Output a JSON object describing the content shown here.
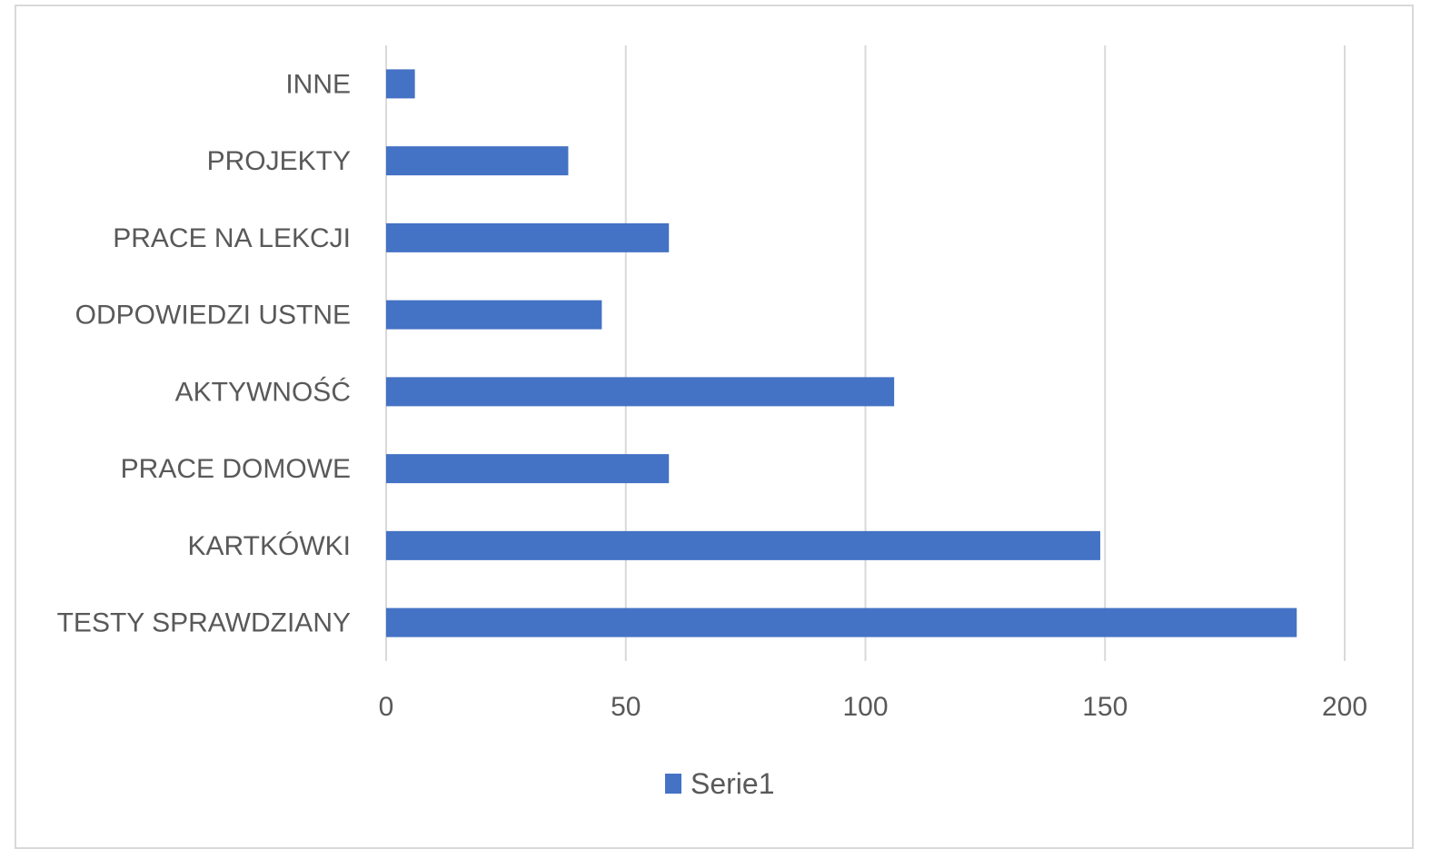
{
  "chart_data": {
    "type": "bar",
    "orientation": "horizontal",
    "categories": [
      "TESTY SPRAWDZIANY",
      "KARTKÓWKI",
      "PRACE DOMOWE",
      "AKTYWNOŚĆ",
      "ODPOWIEDZI USTNE",
      "PRACE NA LEKCJI",
      "PROJEKTY",
      "INNE"
    ],
    "series": [
      {
        "name": "Serie1",
        "values": [
          190,
          149,
          59,
          106,
          45,
          59,
          38,
          6
        ],
        "color": "#4472c4"
      }
    ],
    "xlim": [
      0,
      200
    ],
    "xticks": [
      0,
      50,
      100,
      150,
      200
    ],
    "grid": true,
    "legend": "bottom-center",
    "gridline_color": "#d9d9d9",
    "text_color": "#595959"
  }
}
